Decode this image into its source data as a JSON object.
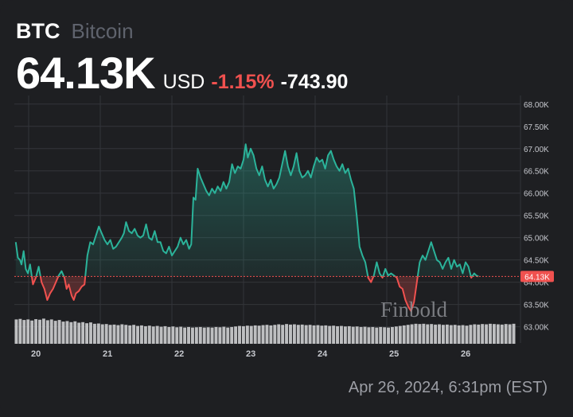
{
  "header": {
    "symbol": "BTC",
    "name": "Bitcoin",
    "price": "64.13K",
    "currency": "USD",
    "change_pct": "-1.15%",
    "change_abs": "-743.90"
  },
  "timestamp": "Apr 26, 2024, 6:31pm (EST)",
  "watermark": "Finbold",
  "colors": {
    "up": "#2bb39a",
    "down": "#f0514f",
    "background": "#1e1f22",
    "grid": "#33353a",
    "volume": "#cfd0d3"
  },
  "chart_data": {
    "type": "line",
    "baseline": 64.13,
    "current_label": "64.13K",
    "ylim": [
      62.85,
      68.05
    ],
    "y_ticks": [
      63.0,
      63.5,
      64.0,
      64.5,
      65.0,
      65.5,
      66.0,
      66.5,
      67.0,
      67.5,
      68.0
    ],
    "y_tick_labels": [
      "63.00K",
      "63.50K",
      "64.00K",
      "64.50K",
      "65.00K",
      "65.50K",
      "66.00K",
      "66.50K",
      "67.00K",
      "67.50K",
      "68.00K"
    ],
    "x_ticks": [
      20,
      21,
      22,
      23,
      24,
      25,
      26
    ],
    "x_tick_labels": [
      "20",
      "21",
      "22",
      "23",
      "24",
      "25",
      "26"
    ],
    "xlim": [
      19.8,
      26.8
    ],
    "grid": true,
    "points": [
      [
        19.82,
        64.9
      ],
      [
        19.85,
        64.55
      ],
      [
        19.88,
        64.5
      ],
      [
        19.9,
        64.4
      ],
      [
        19.93,
        64.7
      ],
      [
        19.96,
        64.3
      ],
      [
        19.99,
        64.2
      ],
      [
        20.02,
        64.4
      ],
      [
        20.06,
        63.95
      ],
      [
        20.1,
        64.1
      ],
      [
        20.14,
        64.35
      ],
      [
        20.18,
        64.0
      ],
      [
        20.22,
        63.85
      ],
      [
        20.26,
        63.6
      ],
      [
        20.3,
        63.75
      ],
      [
        20.34,
        63.85
      ],
      [
        20.38,
        64.0
      ],
      [
        20.42,
        64.15
      ],
      [
        20.46,
        64.25
      ],
      [
        20.5,
        64.1
      ],
      [
        20.53,
        63.85
      ],
      [
        20.56,
        63.95
      ],
      [
        20.6,
        63.7
      ],
      [
        20.63,
        63.6
      ],
      [
        20.66,
        63.75
      ],
      [
        20.7,
        63.8
      ],
      [
        20.74,
        63.9
      ],
      [
        20.78,
        63.95
      ],
      [
        20.82,
        64.6
      ],
      [
        20.86,
        64.9
      ],
      [
        20.9,
        64.85
      ],
      [
        20.94,
        65.05
      ],
      [
        20.98,
        65.25
      ],
      [
        21.02,
        65.1
      ],
      [
        21.06,
        64.95
      ],
      [
        21.1,
        64.85
      ],
      [
        21.14,
        64.95
      ],
      [
        21.18,
        64.75
      ],
      [
        21.22,
        64.8
      ],
      [
        21.26,
        64.9
      ],
      [
        21.3,
        65.0
      ],
      [
        21.33,
        65.1
      ],
      [
        21.36,
        65.35
      ],
      [
        21.4,
        65.15
      ],
      [
        21.44,
        65.1
      ],
      [
        21.48,
        65.2
      ],
      [
        21.52,
        65.05
      ],
      [
        21.56,
        65.0
      ],
      [
        21.6,
        65.05
      ],
      [
        21.64,
        65.3
      ],
      [
        21.68,
        65.0
      ],
      [
        21.72,
        64.95
      ],
      [
        21.76,
        65.15
      ],
      [
        21.8,
        64.9
      ],
      [
        21.84,
        64.9
      ],
      [
        21.88,
        64.7
      ],
      [
        21.92,
        64.65
      ],
      [
        21.96,
        64.8
      ],
      [
        22.0,
        64.6
      ],
      [
        22.04,
        64.7
      ],
      [
        22.08,
        64.8
      ],
      [
        22.12,
        65.0
      ],
      [
        22.16,
        64.85
      ],
      [
        22.2,
        64.95
      ],
      [
        22.24,
        64.75
      ],
      [
        22.27,
        64.85
      ],
      [
        22.3,
        65.9
      ],
      [
        22.33,
        65.85
      ],
      [
        22.36,
        66.55
      ],
      [
        22.4,
        66.35
      ],
      [
        22.44,
        66.2
      ],
      [
        22.48,
        66.05
      ],
      [
        22.52,
        65.95
      ],
      [
        22.56,
        66.1
      ],
      [
        22.6,
        66.0
      ],
      [
        22.64,
        66.15
      ],
      [
        22.68,
        66.05
      ],
      [
        22.72,
        66.25
      ],
      [
        22.76,
        66.1
      ],
      [
        22.8,
        66.25
      ],
      [
        22.84,
        66.65
      ],
      [
        22.88,
        66.45
      ],
      [
        22.92,
        66.6
      ],
      [
        22.96,
        66.55
      ],
      [
        23.0,
        66.75
      ],
      [
        23.03,
        67.1
      ],
      [
        23.06,
        66.8
      ],
      [
        23.1,
        67.0
      ],
      [
        23.14,
        66.85
      ],
      [
        23.18,
        66.55
      ],
      [
        23.22,
        66.4
      ],
      [
        23.26,
        66.6
      ],
      [
        23.3,
        66.3
      ],
      [
        23.34,
        66.15
      ],
      [
        23.38,
        66.3
      ],
      [
        23.42,
        66.1
      ],
      [
        23.46,
        66.2
      ],
      [
        23.5,
        66.35
      ],
      [
        23.54,
        66.65
      ],
      [
        23.58,
        66.95
      ],
      [
        23.62,
        66.6
      ],
      [
        23.66,
        66.4
      ],
      [
        23.7,
        66.6
      ],
      [
        23.74,
        66.9
      ],
      [
        23.78,
        66.5
      ],
      [
        23.82,
        66.35
      ],
      [
        23.86,
        66.4
      ],
      [
        23.9,
        66.5
      ],
      [
        23.94,
        66.35
      ],
      [
        23.98,
        66.6
      ],
      [
        24.02,
        66.8
      ],
      [
        24.06,
        66.7
      ],
      [
        24.1,
        66.75
      ],
      [
        24.14,
        66.55
      ],
      [
        24.18,
        66.85
      ],
      [
        24.22,
        66.95
      ],
      [
        24.26,
        66.75
      ],
      [
        24.3,
        66.6
      ],
      [
        24.34,
        66.5
      ],
      [
        24.38,
        66.65
      ],
      [
        24.42,
        66.45
      ],
      [
        24.46,
        66.55
      ],
      [
        24.5,
        66.3
      ],
      [
        24.54,
        66.1
      ],
      [
        24.58,
        65.5
      ],
      [
        24.62,
        64.8
      ],
      [
        24.66,
        64.6
      ],
      [
        24.7,
        64.45
      ],
      [
        24.74,
        64.1
      ],
      [
        24.78,
        64.0
      ],
      [
        24.82,
        64.15
      ],
      [
        24.86,
        64.45
      ],
      [
        24.9,
        64.2
      ],
      [
        24.94,
        64.1
      ],
      [
        24.98,
        64.3
      ],
      [
        25.02,
        64.15
      ],
      [
        25.06,
        64.2
      ],
      [
        25.1,
        64.15
      ],
      [
        25.14,
        64.1
      ],
      [
        25.18,
        63.9
      ],
      [
        25.22,
        63.85
      ],
      [
        25.26,
        63.6
      ],
      [
        25.3,
        63.45
      ],
      [
        25.34,
        63.35
      ],
      [
        25.38,
        63.55
      ],
      [
        25.42,
        64.0
      ],
      [
        25.46,
        64.45
      ],
      [
        25.5,
        64.6
      ],
      [
        25.54,
        64.5
      ],
      [
        25.58,
        64.7
      ],
      [
        25.62,
        64.9
      ],
      [
        25.66,
        64.7
      ],
      [
        25.7,
        64.5
      ],
      [
        25.74,
        64.45
      ],
      [
        25.78,
        64.3
      ],
      [
        25.82,
        64.45
      ],
      [
        25.86,
        64.55
      ],
      [
        25.9,
        64.3
      ],
      [
        25.94,
        64.5
      ],
      [
        25.98,
        64.35
      ],
      [
        26.02,
        64.4
      ],
      [
        26.06,
        64.2
      ],
      [
        26.1,
        64.45
      ],
      [
        26.14,
        64.35
      ],
      [
        26.18,
        64.1
      ],
      [
        26.22,
        64.2
      ],
      [
        26.25,
        64.15
      ],
      [
        26.28,
        64.13
      ]
    ],
    "volume": [
      0.9,
      0.92,
      0.88,
      0.9,
      0.86,
      0.91,
      0.89,
      0.93,
      0.87,
      0.9,
      0.85,
      0.88,
      0.82,
      0.84,
      0.8,
      0.83,
      0.78,
      0.8,
      0.76,
      0.79,
      0.74,
      0.75,
      0.72,
      0.73,
      0.7,
      0.71,
      0.69,
      0.72,
      0.7,
      0.68,
      0.7,
      0.66,
      0.68,
      0.65,
      0.67,
      0.64,
      0.66,
      0.63,
      0.65,
      0.62,
      0.64,
      0.61,
      0.63,
      0.6,
      0.62,
      0.6,
      0.61,
      0.62,
      0.6,
      0.61,
      0.6,
      0.62,
      0.61,
      0.63,
      0.6,
      0.62,
      0.64,
      0.66,
      0.65,
      0.67,
      0.66,
      0.68,
      0.67,
      0.69,
      0.7,
      0.68,
      0.7,
      0.72,
      0.7,
      0.73,
      0.71,
      0.72,
      0.7,
      0.71,
      0.69,
      0.7,
      0.68,
      0.69,
      0.67,
      0.68,
      0.66,
      0.67,
      0.65,
      0.66,
      0.64,
      0.65,
      0.63,
      0.64,
      0.62,
      0.63,
      0.61,
      0.62,
      0.6,
      0.62,
      0.61,
      0.6,
      0.62,
      0.64,
      0.66,
      0.68,
      0.7,
      0.72,
      0.74,
      0.73,
      0.74,
      0.72,
      0.73,
      0.71,
      0.72,
      0.7,
      0.71,
      0.69,
      0.7,
      0.68,
      0.69,
      0.67,
      0.7,
      0.72,
      0.71,
      0.73,
      0.72,
      0.74,
      0.73,
      0.72,
      0.71,
      0.73,
      0.72,
      0.74
    ]
  }
}
